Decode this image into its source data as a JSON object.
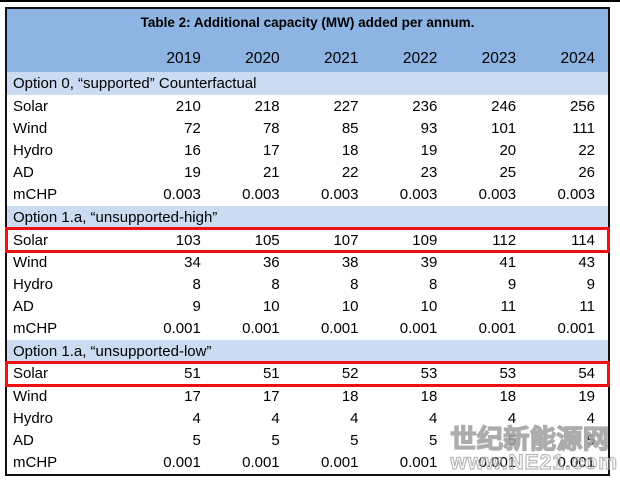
{
  "table": {
    "title": "Table 2: Additional capacity (MW) added per annum.",
    "years": [
      "2019",
      "2020",
      "2021",
      "2022",
      "2023",
      "2024"
    ],
    "sections": [
      {
        "header": "Option 0, “supported” Counterfactual",
        "rows": [
          {
            "label": "Solar",
            "values": [
              "210",
              "218",
              "227",
              "236",
              "246",
              "256"
            ],
            "highlight": false
          },
          {
            "label": "Wind",
            "values": [
              "72",
              "78",
              "85",
              "93",
              "101",
              "111"
            ],
            "highlight": false
          },
          {
            "label": "Hydro",
            "values": [
              "16",
              "17",
              "18",
              "19",
              "20",
              "22"
            ],
            "highlight": false
          },
          {
            "label": "AD",
            "values": [
              "19",
              "21",
              "22",
              "23",
              "25",
              "26"
            ],
            "highlight": false
          },
          {
            "label": "mCHP",
            "values": [
              "0.003",
              "0.003",
              "0.003",
              "0.003",
              "0.003",
              "0.003"
            ],
            "highlight": false
          }
        ]
      },
      {
        "header": "Option 1.a, “unsupported-high”",
        "rows": [
          {
            "label": "Solar",
            "values": [
              "103",
              "105",
              "107",
              "109",
              "112",
              "114"
            ],
            "highlight": true
          },
          {
            "label": "Wind",
            "values": [
              "34",
              "36",
              "38",
              "39",
              "41",
              "43"
            ],
            "highlight": false
          },
          {
            "label": "Hydro",
            "values": [
              "8",
              "8",
              "8",
              "8",
              "9",
              "9"
            ],
            "highlight": false
          },
          {
            "label": "AD",
            "values": [
              "9",
              "10",
              "10",
              "10",
              "11",
              "11"
            ],
            "highlight": false
          },
          {
            "label": "mCHP",
            "values": [
              "0.001",
              "0.001",
              "0.001",
              "0.001",
              "0.001",
              "0.001"
            ],
            "highlight": false
          }
        ]
      },
      {
        "header": "Option 1.a, “unsupported-low”",
        "rows": [
          {
            "label": "Solar",
            "values": [
              "51",
              "51",
              "52",
              "53",
              "53",
              "54"
            ],
            "highlight": true
          },
          {
            "label": "Wind",
            "values": [
              "17",
              "17",
              "18",
              "18",
              "18",
              "19"
            ],
            "highlight": false
          },
          {
            "label": "Hydro",
            "values": [
              "4",
              "4",
              "4",
              "4",
              "4",
              "4"
            ],
            "highlight": false
          },
          {
            "label": "AD",
            "values": [
              "5",
              "5",
              "5",
              "5",
              "5",
              "5"
            ],
            "highlight": false
          },
          {
            "label": "mCHP",
            "values": [
              "0.001",
              "0.001",
              "0.001",
              "0.001",
              "0.001",
              "0.001"
            ],
            "highlight": false
          }
        ]
      }
    ]
  },
  "watermark": {
    "line1": "世纪新能源网",
    "line2": "www.NE21.com"
  },
  "colors": {
    "header_blue": "#8db4e2",
    "band_blue": "#cbdcf2",
    "highlight_red": "#ee1111",
    "border_black": "#111111"
  }
}
